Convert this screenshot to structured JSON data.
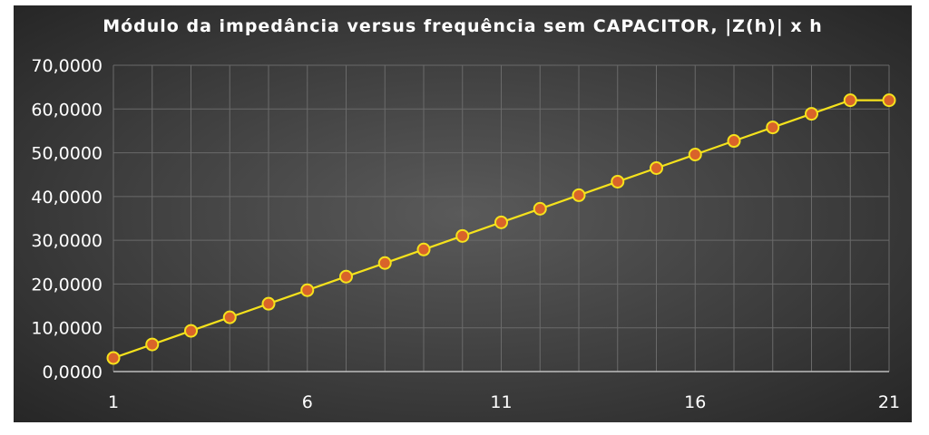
{
  "chart_data": {
    "type": "line",
    "title": "Módulo da impedância versus frequência sem CAPACITOR, |Z(h)| x h",
    "xlabel": "",
    "ylabel": "",
    "x": [
      1,
      2,
      3,
      4,
      5,
      6,
      7,
      8,
      9,
      10,
      11,
      12,
      13,
      14,
      15,
      16,
      17,
      18,
      19,
      20,
      21
    ],
    "x_tick_labels": [
      "1",
      "6",
      "11",
      "16",
      "21"
    ],
    "x_tick_values": [
      1,
      6,
      11,
      16,
      21
    ],
    "y_tick_labels": [
      "0,0000",
      "10,0000",
      "20,0000",
      "30,0000",
      "40,0000",
      "50,0000",
      "60,0000",
      "70,0000"
    ],
    "y_tick_values": [
      0,
      10,
      20,
      30,
      40,
      50,
      60,
      70
    ],
    "ylim": [
      0,
      70
    ],
    "xlim": [
      1,
      21
    ],
    "grid": true,
    "legend": "none",
    "series": [
      {
        "values": [
          3.1,
          6.2,
          9.3,
          12.4,
          15.5,
          18.6,
          21.7,
          24.8,
          27.9,
          31.0,
          34.1,
          37.2,
          40.3,
          43.4,
          46.5,
          49.6,
          52.7,
          55.8,
          58.9,
          62.0,
          62.0
        ],
        "line_color": "#f5e21c",
        "marker_color": "#d9632a"
      }
    ],
    "background_color": "#3c3c3c",
    "grid_color": "#6a6a6a",
    "text_color": "#ffffff"
  }
}
